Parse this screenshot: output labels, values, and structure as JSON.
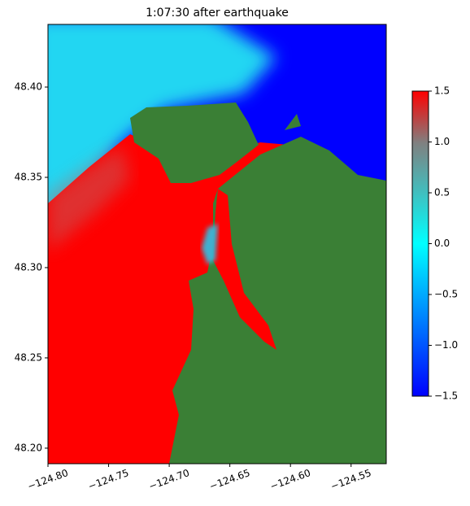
{
  "chart_data": {
    "type": "heatmap",
    "title": "1:07:30 after earthquake",
    "xlim": [
      -124.8,
      -124.521
    ],
    "ylim": [
      48.1914,
      48.4347
    ],
    "xticks": [
      {
        "value": -124.8,
        "label": "−124.80"
      },
      {
        "value": -124.75,
        "label": "−124.75"
      },
      {
        "value": -124.7,
        "label": "−124.70"
      },
      {
        "value": -124.65,
        "label": "−124.65"
      },
      {
        "value": -124.6,
        "label": "−124.60"
      },
      {
        "value": -124.55,
        "label": "−124.55"
      }
    ],
    "yticks": [
      {
        "value": 48.2,
        "label": "48.20"
      },
      {
        "value": 48.25,
        "label": "48.25"
      },
      {
        "value": 48.3,
        "label": "48.30"
      },
      {
        "value": 48.35,
        "label": "48.35"
      },
      {
        "value": 48.4,
        "label": "48.40"
      }
    ],
    "clim": [
      -1.5,
      1.5
    ],
    "cticks": [
      {
        "value": -1.5,
        "label": "−1.5"
      },
      {
        "value": -1.0,
        "label": "−1.0"
      },
      {
        "value": -0.5,
        "label": "−0.5"
      },
      {
        "value": 0.0,
        "label": "0.0"
      },
      0.5,
      {
        "value": 1.0,
        "label": "1.0"
      },
      1.5
    ]
  }
}
